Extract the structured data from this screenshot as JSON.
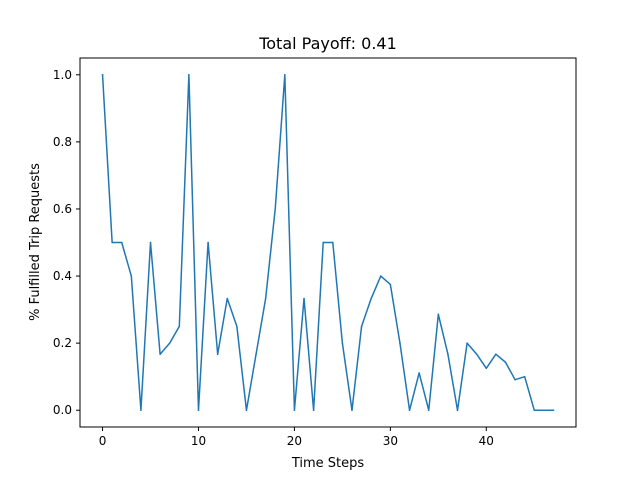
{
  "chart_data": {
    "type": "line",
    "title": "Total Payoff: 0.41",
    "xlabel": "Time Steps",
    "ylabel": "% Fulfilled Trip Requests",
    "xlim": [
      -2.35,
      49.35
    ],
    "ylim": [
      -0.05,
      1.05
    ],
    "xticks": [
      0,
      10,
      20,
      30,
      40
    ],
    "xtick_labels": [
      "0",
      "10",
      "20",
      "30",
      "40"
    ],
    "yticks": [
      0.0,
      0.2,
      0.4,
      0.6,
      0.8,
      1.0
    ],
    "ytick_labels": [
      "0.0",
      "0.2",
      "0.4",
      "0.6",
      "0.8",
      "1.0"
    ],
    "grid": false,
    "series": [
      {
        "color": "#1f77b4",
        "x": [
          0,
          1,
          2,
          3,
          4,
          5,
          6,
          7,
          8,
          9,
          10,
          11,
          12,
          13,
          14,
          15,
          16,
          17,
          18,
          19,
          20,
          21,
          22,
          23,
          24,
          25,
          26,
          27,
          28,
          29,
          30,
          31,
          32,
          33,
          34,
          35,
          36,
          37,
          38,
          39,
          40,
          41,
          42,
          43,
          44,
          45,
          46,
          47
        ],
        "values": [
          1.0,
          0.5,
          0.5,
          0.4,
          0.0,
          0.5,
          0.167,
          0.2,
          0.25,
          1.0,
          0.0,
          0.5,
          0.167,
          0.333,
          0.25,
          0.0,
          0.167,
          0.333,
          0.6,
          1.0,
          0.0,
          0.333,
          0.0,
          0.5,
          0.5,
          0.2,
          0.0,
          0.25,
          0.333,
          0.4,
          0.375,
          0.2,
          0.0,
          0.111,
          0.0,
          0.286,
          0.167,
          0.0,
          0.2,
          0.167,
          0.125,
          0.167,
          0.143,
          0.091,
          0.1,
          0.0,
          0.0,
          0.0
        ]
      }
    ]
  }
}
